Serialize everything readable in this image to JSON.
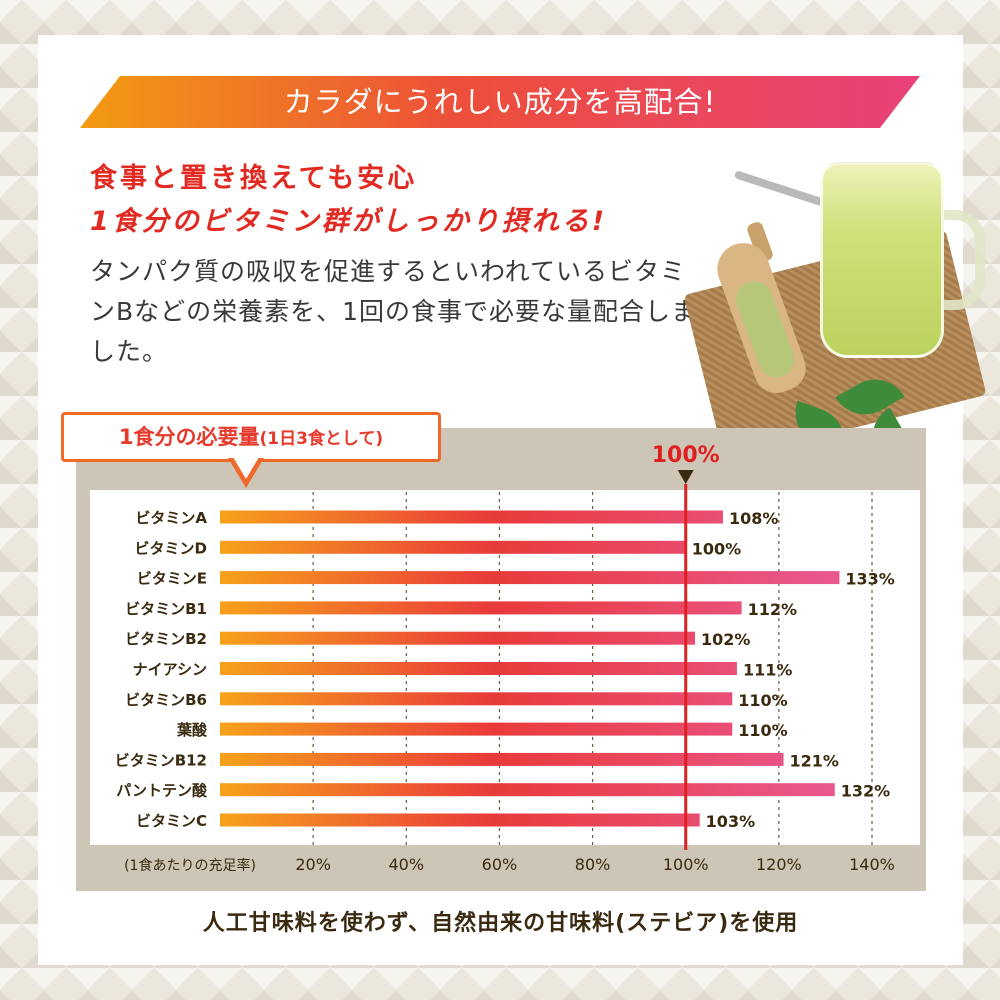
{
  "banner": {
    "text": "カラダにうれしい成分を高配合!"
  },
  "headline": {
    "line1": "食事と置き換えても安心",
    "line2": "1食分のビタミン群がしっかり摂れる!"
  },
  "body_text": "タンパク質の吸収を促進するといわれているビタミンBなどの栄養素を、1回の食事で必要な量配合しました。",
  "callout": {
    "main": "1食分の必要量",
    "sub": "(1日3食として)"
  },
  "footer": {
    "text": "人工甘味料を使わず、自然由来の甘味料(ステビア)を使用"
  },
  "colors": {
    "bar_start": "#f7a11a",
    "bar_mid": "#e93a3a",
    "bar_end": "#e9578e",
    "reference_line": "#e02020"
  },
  "chart_data": {
    "type": "bar",
    "orientation": "horizontal",
    "categories": [
      "ビタミンA",
      "ビタミンD",
      "ビタミンE",
      "ビタミンB1",
      "ビタミンB2",
      "ナイアシン",
      "ビタミンB6",
      "葉酸",
      "ビタミンB12",
      "パントテン酸",
      "ビタミンC"
    ],
    "values": [
      108,
      100,
      133,
      112,
      102,
      111,
      110,
      110,
      121,
      132,
      103
    ],
    "value_labels": [
      "108%",
      "100%",
      "133%",
      "112%",
      "102%",
      "111%",
      "110%",
      "110%",
      "121%",
      "132%",
      "103%"
    ],
    "xlim": [
      0,
      140
    ],
    "x_ticks": [
      20,
      40,
      60,
      80,
      100,
      120,
      140
    ],
    "x_tick_labels": [
      "20%",
      "40%",
      "60%",
      "80%",
      "100%",
      "120%",
      "140%"
    ],
    "x_axis_caption": "(1食あたりの充足率)",
    "reference": {
      "value": 100,
      "label": "100%"
    },
    "grid": true
  }
}
